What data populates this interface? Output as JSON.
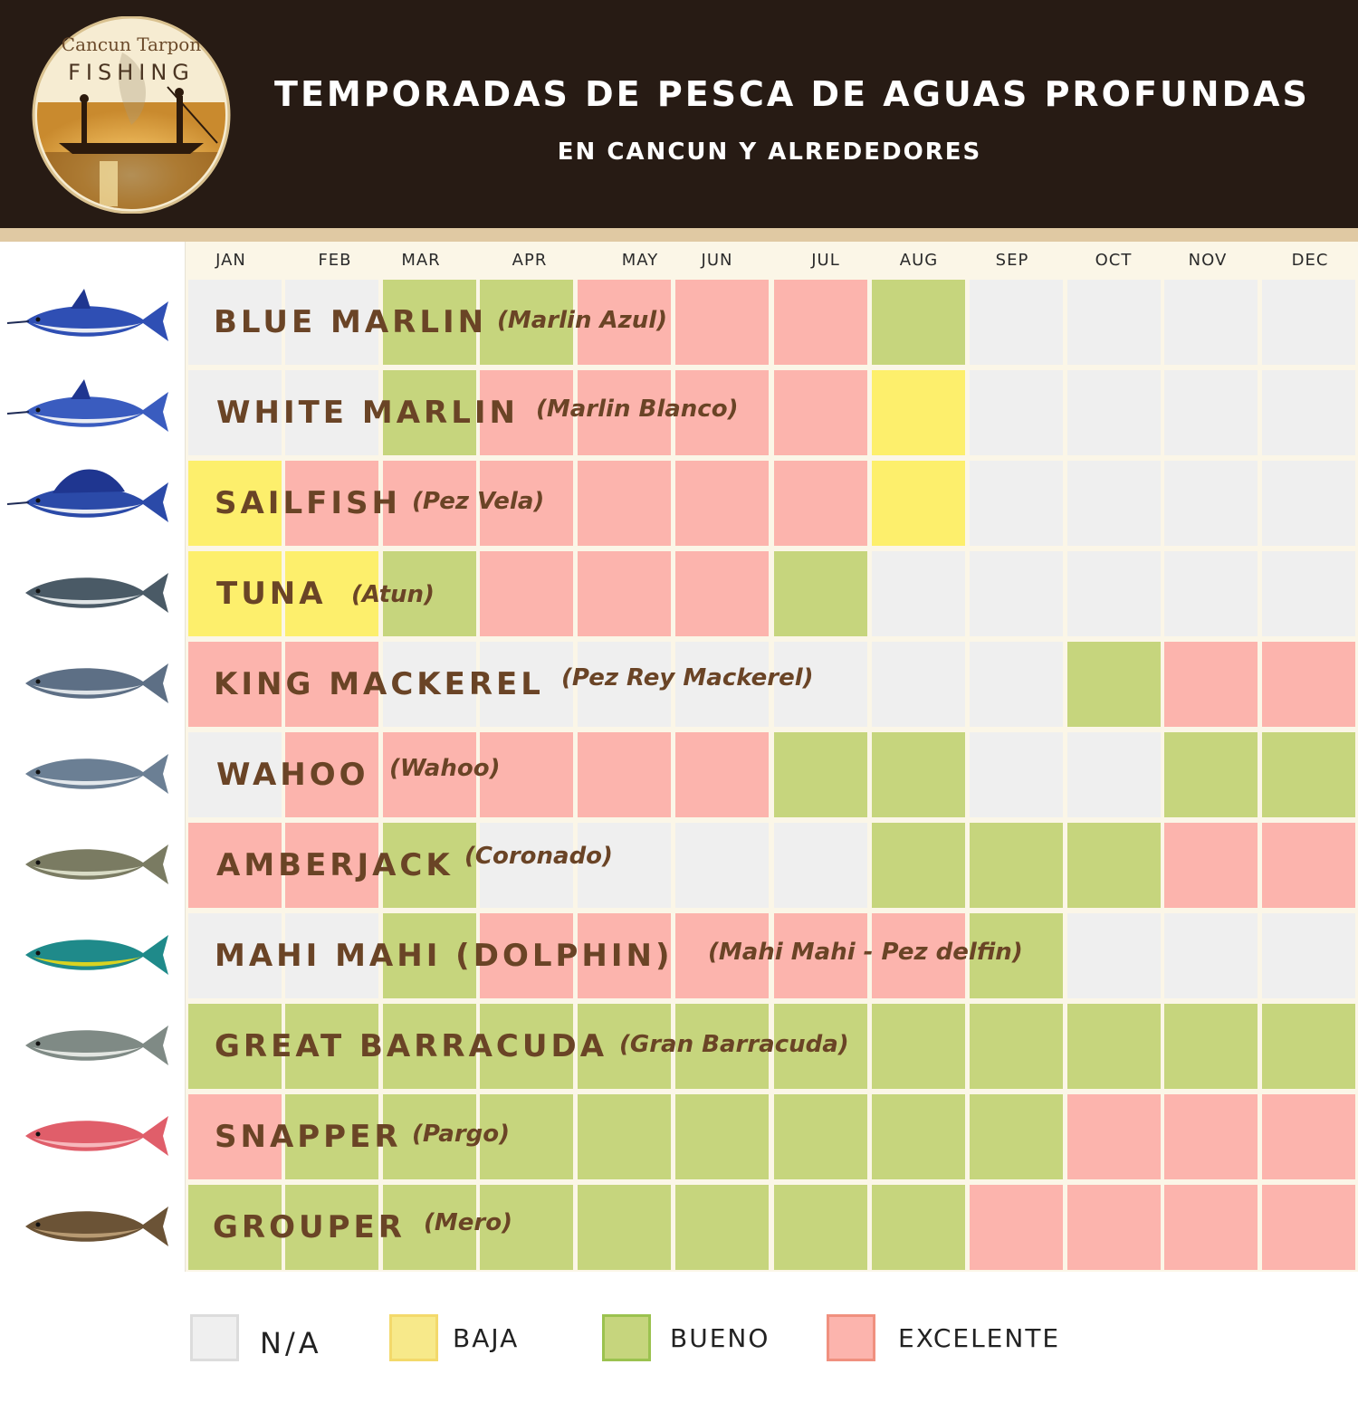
{
  "header": {
    "logo_text_top": "Cancun Tarpon",
    "logo_text_main": "FISHING",
    "title": "TEMPORADAS DE PESCA DE AGUAS PROFUNDAS",
    "subtitle": "EN CANCUN Y ALREDEDORES"
  },
  "chart_data": {
    "type": "table",
    "columns": [
      "JAN",
      "FEB",
      "MAR",
      "APR",
      "MAY",
      "JUN",
      "JUL",
      "AUG",
      "SEP",
      "OCT",
      "NOV",
      "DEC"
    ],
    "rows": [
      {
        "name": "BLUE MARLIN",
        "spanish": "(Marlin Azul)",
        "fish_icon": "blue-marlin-icon",
        "ratings": [
          "N/A",
          "N/A",
          "BUENO",
          "BUENO",
          "EXCELENTE",
          "EXCELENTE",
          "EXCELENTE",
          "BUENO",
          "N/A",
          "N/A",
          "N/A",
          "N/A"
        ]
      },
      {
        "name": "WHITE MARLIN",
        "spanish": "(Marlin Blanco)",
        "fish_icon": "white-marlin-icon",
        "ratings": [
          "N/A",
          "N/A",
          "BUENO",
          "EXCELENTE",
          "EXCELENTE",
          "EXCELENTE",
          "EXCELENTE",
          "BAJA",
          "N/A",
          "N/A",
          "N/A",
          "N/A"
        ]
      },
      {
        "name": "SAILFISH",
        "spanish": "(Pez Vela)",
        "fish_icon": "sailfish-icon",
        "ratings": [
          "BAJA",
          "EXCELENTE",
          "EXCELENTE",
          "EXCELENTE",
          "EXCELENTE",
          "EXCELENTE",
          "EXCELENTE",
          "BAJA",
          "N/A",
          "N/A",
          "N/A",
          "N/A"
        ]
      },
      {
        "name": "TUNA",
        "spanish": "(Atun)",
        "fish_icon": "tuna-icon",
        "ratings": [
          "BAJA",
          "BAJA",
          "BUENO",
          "EXCELENTE",
          "EXCELENTE",
          "EXCELENTE",
          "BUENO",
          "N/A",
          "N/A",
          "N/A",
          "N/A",
          "N/A"
        ]
      },
      {
        "name": "KING MACKEREL",
        "spanish": "(Pez Rey Mackerel)",
        "fish_icon": "king-mackerel-icon",
        "ratings": [
          "EXCELENTE",
          "EXCELENTE",
          "N/A",
          "N/A",
          "N/A",
          "N/A",
          "N/A",
          "N/A",
          "N/A",
          "BUENO",
          "EXCELENTE",
          "EXCELENTE"
        ]
      },
      {
        "name": "WAHOO",
        "spanish": "(Wahoo)",
        "fish_icon": "wahoo-icon",
        "ratings": [
          "N/A",
          "EXCELENTE",
          "EXCELENTE",
          "EXCELENTE",
          "EXCELENTE",
          "EXCELENTE",
          "BUENO",
          "BUENO",
          "N/A",
          "N/A",
          "BUENO",
          "BUENO"
        ]
      },
      {
        "name": "AMBERJACK",
        "spanish": "(Coronado)",
        "fish_icon": "amberjack-icon",
        "ratings": [
          "EXCELENTE",
          "EXCELENTE",
          "BUENO",
          "N/A",
          "N/A",
          "N/A",
          "N/A",
          "BUENO",
          "BUENO",
          "BUENO",
          "EXCELENTE",
          "EXCELENTE"
        ]
      },
      {
        "name": "MAHI MAHI (DOLPHIN)",
        "spanish": "(Mahi Mahi - Pez delfin)",
        "fish_icon": "mahi-mahi-icon",
        "ratings": [
          "N/A",
          "N/A",
          "BUENO",
          "EXCELENTE",
          "EXCELENTE",
          "EXCELENTE",
          "EXCELENTE",
          "EXCELENTE",
          "BUENO",
          "N/A",
          "N/A",
          "N/A"
        ]
      },
      {
        "name": "GREAT BARRACUDA",
        "spanish": "(Gran Barracuda)",
        "fish_icon": "barracuda-icon",
        "ratings": [
          "BUENO",
          "BUENO",
          "BUENO",
          "BUENO",
          "BUENO",
          "BUENO",
          "BUENO",
          "BUENO",
          "BUENO",
          "BUENO",
          "BUENO",
          "BUENO"
        ]
      },
      {
        "name": "SNAPPER",
        "spanish": "(Pargo)",
        "fish_icon": "snapper-icon",
        "ratings": [
          "EXCELENTE",
          "BUENO",
          "BUENO",
          "BUENO",
          "BUENO",
          "BUENO",
          "BUENO",
          "BUENO",
          "BUENO",
          "EXCELENTE",
          "EXCELENTE",
          "EXCELENTE"
        ]
      },
      {
        "name": "GROUPER",
        "spanish": "(Mero)",
        "fish_icon": "grouper-icon",
        "ratings": [
          "BUENO",
          "BUENO",
          "BUENO",
          "BUENO",
          "BUENO",
          "BUENO",
          "BUENO",
          "BUENO",
          "EXCELENTE",
          "EXCELENTE",
          "EXCELENTE",
          "EXCELENTE"
        ]
      }
    ],
    "legend": [
      {
        "key": "N/A",
        "label": "N/A",
        "color": "#efefef",
        "border": "#dcdcdc"
      },
      {
        "key": "BAJA",
        "label": "BAJA",
        "color": "#f7e98a",
        "border": "#f3d96b"
      },
      {
        "key": "BUENO",
        "label": "BUENO",
        "color": "#c6d57d",
        "border": "#9bc24f"
      },
      {
        "key": "EXCELENTE",
        "label": "EXCELENTE",
        "color": "#fcb4ad",
        "border": "#f0907f"
      }
    ],
    "cell_colors": {
      "N/A": "#efefef",
      "BAJA": "#fdef6c",
      "BUENO": "#c6d57d",
      "EXCELENTE": "#fcb4ad"
    }
  }
}
